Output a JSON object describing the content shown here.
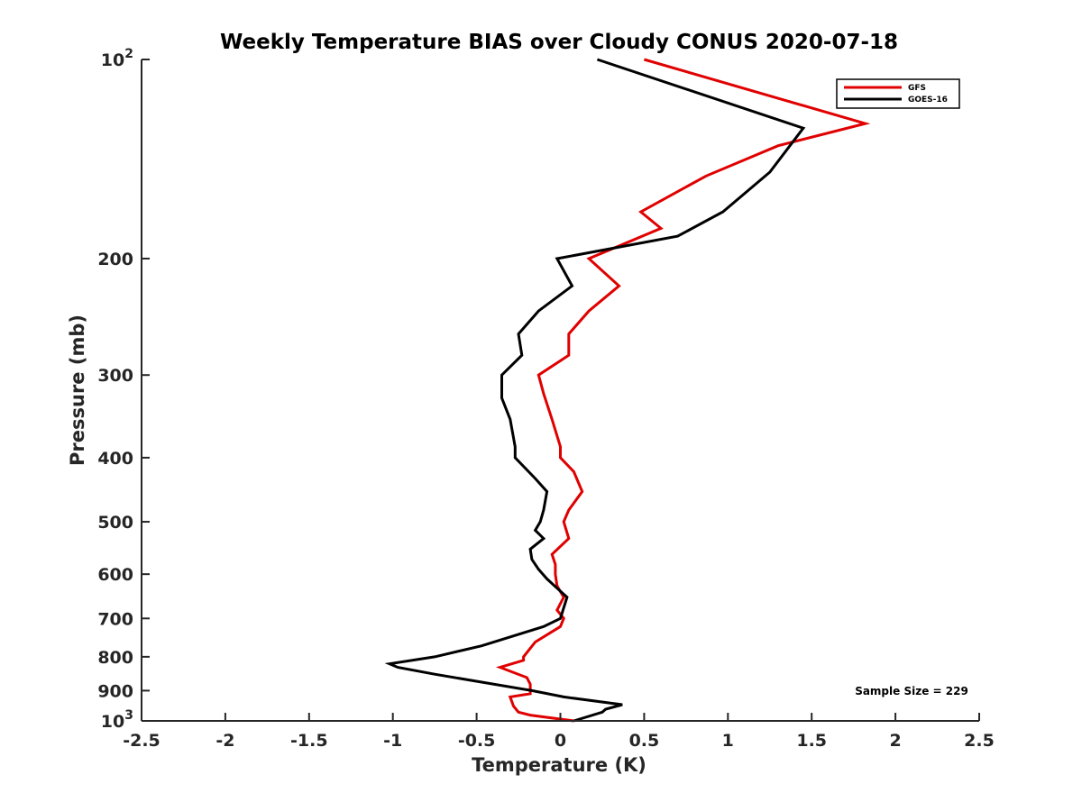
{
  "chart_data": {
    "type": "line",
    "title": "Weekly Temperature BIAS over Cloudy CONUS 2020-07-18",
    "xlabel": "Temperature (K)",
    "ylabel": "Pressure (mb)",
    "xlim": [
      -2.5,
      2.5
    ],
    "ylim": [
      100,
      1000
    ],
    "y_scale": "log",
    "y_reversed": true,
    "x_ticks": [
      "-2.5",
      "-2",
      "-1.5",
      "-1",
      "-0.5",
      "0",
      "0.5",
      "1",
      "1.5",
      "2",
      "2.5"
    ],
    "y_ticks": [
      {
        "value": 100,
        "base": "10",
        "exp": "2"
      },
      {
        "value": 200,
        "label": "200"
      },
      {
        "value": 300,
        "label": "300"
      },
      {
        "value": 400,
        "label": "400"
      },
      {
        "value": 500,
        "label": "500"
      },
      {
        "value": 600,
        "label": "600"
      },
      {
        "value": 700,
        "label": "700"
      },
      {
        "value": 800,
        "label": "800"
      },
      {
        "value": 900,
        "label": "900"
      },
      {
        "value": 1000,
        "base": "10",
        "exp": "3"
      }
    ],
    "grid": false,
    "legend_position": "top-right",
    "annotation": "Sample Size = 229",
    "series": [
      {
        "name": "GFS",
        "color": "#e00000",
        "points": [
          [
            0.5,
            100
          ],
          [
            1.82,
            125
          ],
          [
            1.3,
            135
          ],
          [
            0.87,
            150
          ],
          [
            0.48,
            170
          ],
          [
            0.6,
            180
          ],
          [
            0.17,
            200
          ],
          [
            0.35,
            220
          ],
          [
            0.17,
            240
          ],
          [
            0.05,
            260
          ],
          [
            0.05,
            280
          ],
          [
            -0.13,
            300
          ],
          [
            -0.1,
            320
          ],
          [
            -0.05,
            350
          ],
          [
            0.0,
            385
          ],
          [
            0.0,
            400
          ],
          [
            0.08,
            420
          ],
          [
            0.13,
            450
          ],
          [
            0.05,
            480
          ],
          [
            0.02,
            500
          ],
          [
            0.05,
            530
          ],
          [
            -0.05,
            560
          ],
          [
            -0.03,
            580
          ],
          [
            -0.03,
            600
          ],
          [
            -0.02,
            625
          ],
          [
            0.02,
            650
          ],
          [
            -0.02,
            680
          ],
          [
            0.02,
            700
          ],
          [
            0.0,
            720
          ],
          [
            -0.15,
            760
          ],
          [
            -0.22,
            800
          ],
          [
            -0.22,
            810
          ],
          [
            -0.36,
            830
          ],
          [
            -0.2,
            860
          ],
          [
            -0.18,
            880
          ],
          [
            -0.18,
            910
          ],
          [
            -0.3,
            920
          ],
          [
            -0.28,
            950
          ],
          [
            -0.25,
            970
          ],
          [
            -0.18,
            980
          ],
          [
            0.08,
            1000
          ]
        ]
      },
      {
        "name": "GOES-16",
        "color": "#000000",
        "points": [
          [
            0.22,
            100
          ],
          [
            1.45,
            127
          ],
          [
            1.25,
            148
          ],
          [
            0.97,
            170
          ],
          [
            0.7,
            185
          ],
          [
            -0.02,
            200
          ],
          [
            0.07,
            220
          ],
          [
            -0.13,
            240
          ],
          [
            -0.25,
            260
          ],
          [
            -0.23,
            280
          ],
          [
            -0.35,
            300
          ],
          [
            -0.35,
            325
          ],
          [
            -0.3,
            350
          ],
          [
            -0.27,
            385
          ],
          [
            -0.27,
            400
          ],
          [
            -0.15,
            430
          ],
          [
            -0.08,
            450
          ],
          [
            -0.1,
            480
          ],
          [
            -0.12,
            500
          ],
          [
            -0.15,
            515
          ],
          [
            -0.1,
            530
          ],
          [
            -0.18,
            550
          ],
          [
            -0.17,
            570
          ],
          [
            -0.13,
            590
          ],
          [
            -0.08,
            610
          ],
          [
            -0.02,
            630
          ],
          [
            0.04,
            650
          ],
          [
            0.0,
            700
          ],
          [
            -0.1,
            720
          ],
          [
            -0.47,
            770
          ],
          [
            -0.75,
            800
          ],
          [
            -1.02,
            820
          ],
          [
            -0.97,
            830
          ],
          [
            -0.75,
            850
          ],
          [
            -0.17,
            900
          ],
          [
            0.02,
            920
          ],
          [
            0.37,
            945
          ],
          [
            0.27,
            960
          ],
          [
            0.25,
            970
          ],
          [
            0.08,
            1000
          ]
        ]
      }
    ]
  }
}
